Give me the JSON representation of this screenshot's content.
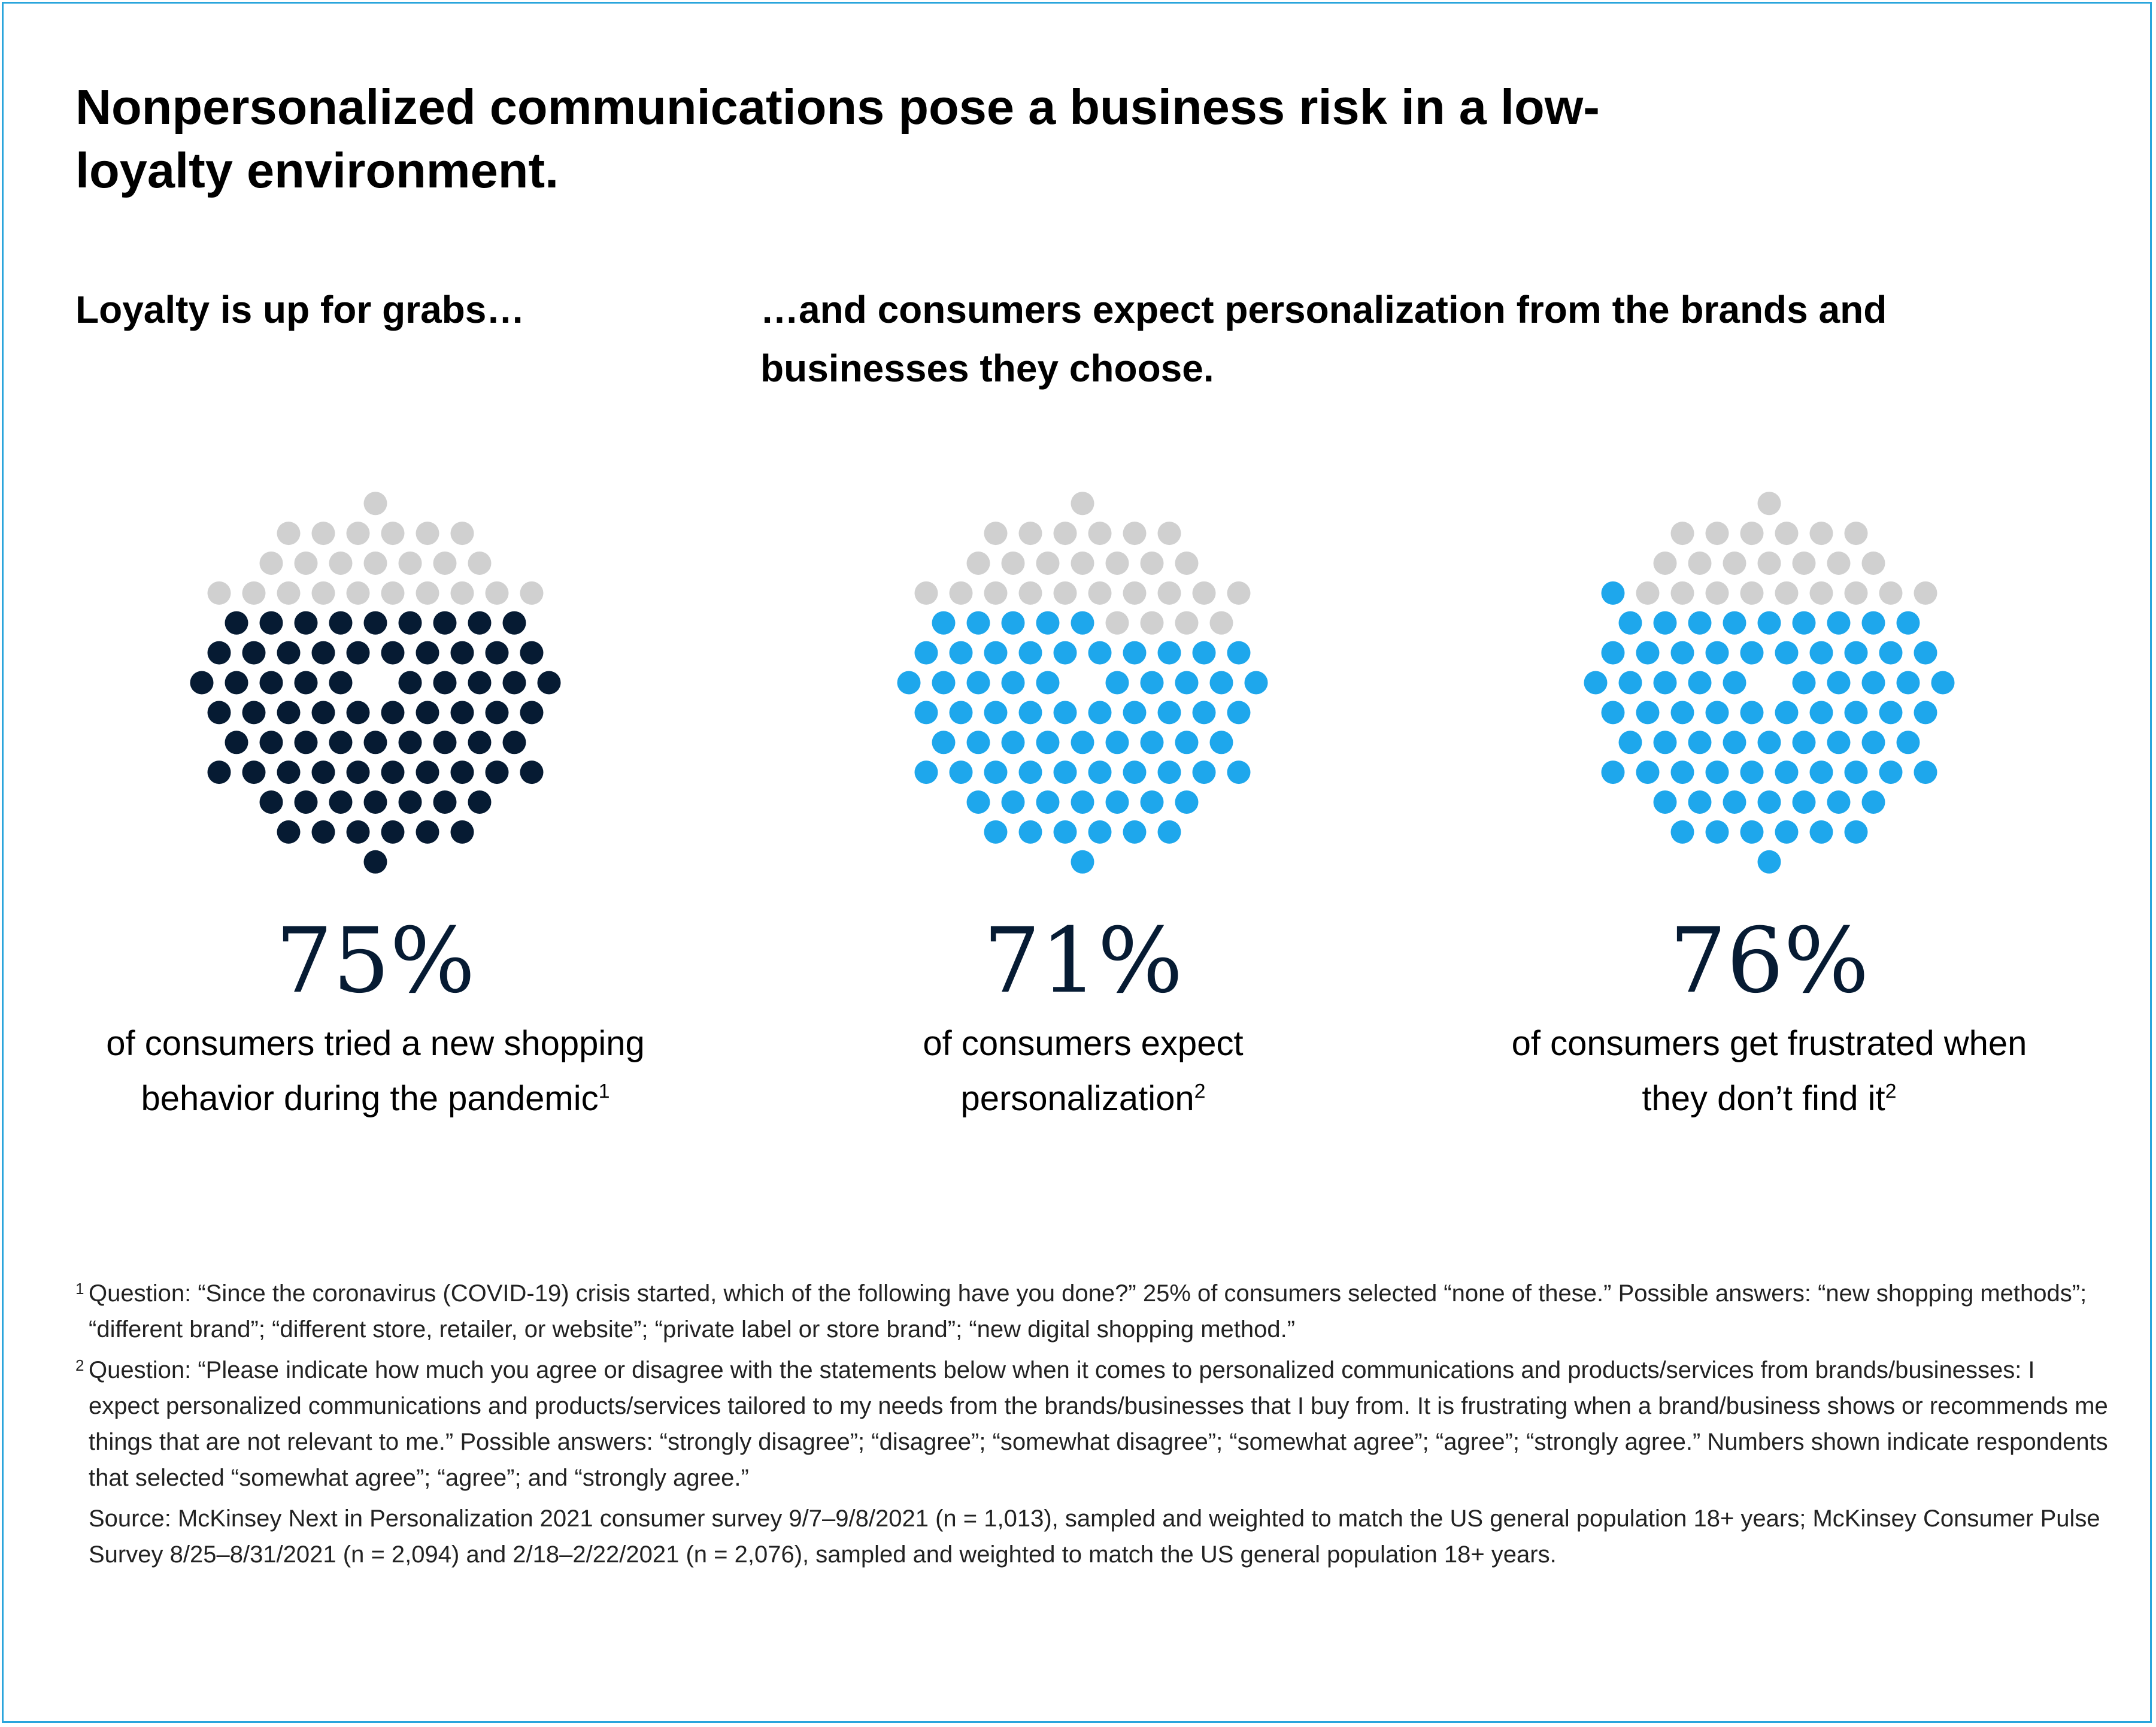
{
  "title": "Nonpersonalized communications pose a business risk in a low-loyalty environment.",
  "subtitle_left": "Loyalty is up for grabs…",
  "subtitle_right": "…and consumers expect personalization from the brands and businesses they choose.",
  "colors": {
    "border": "#2aa5dc",
    "dark": "#061b33",
    "blue": "#1ea7ec",
    "gray": "#d0d0d0"
  },
  "chart_data": [
    {
      "type": "dot-circle",
      "value": 75,
      "value_label": "75%",
      "description": "of consumers tried a new shopping behavior during the pandemic",
      "footnote": "1",
      "highlight_color": "#061b33",
      "rest_color": "#d0d0d0"
    },
    {
      "type": "dot-circle",
      "value": 71,
      "value_label": "71%",
      "description": "of consumers expect personalization",
      "footnote": "2",
      "highlight_color": "#1ea7ec",
      "rest_color": "#d0d0d0"
    },
    {
      "type": "dot-circle",
      "value": 76,
      "value_label": "76%",
      "description": "of consumers get frustrated when they don’t find it",
      "footnote": "2",
      "highlight_color": "#1ea7ec",
      "rest_color": "#d0d0d0"
    }
  ],
  "footnotes": [
    {
      "mark": "1",
      "text": "Question: “Since the coronavirus (COVID-19) crisis started, which of the following have you done?” 25% of consumers selected “none of these.” Possible answers: “new shopping methods”; “different brand”; “different store, retailer, or website”; “private label or store brand”; “new digital shopping method.”"
    },
    {
      "mark": "2",
      "text": "Question: “Please indicate how much you agree or disagree with the statements below when it comes to personalized communications and products/services from brands/businesses: I expect personalized communications and products/services tailored to my needs from the brands/businesses that I buy from. It is frustrating when a brand/business shows or recommends me things that are not relevant to me.” Possible answers: “strongly disagree”; “disagree”; “somewhat disagree”; “somewhat agree”; “agree”; “strongly agree.” Numbers shown indicate respondents that selected “somewhat agree”; “agree”; and “strongly agree.”"
    }
  ],
  "source": "Source: McKinsey Next in Personalization 2021 consumer survey 9/7–9/8/2021 (n = 1,013), sampled and weighted to match the US general population 18+ years; McKinsey Consumer Pulse Survey 8/25–8/31/2021 (n = 2,094) and 2/18–2/22/2021 (n = 2,076), sampled and weighted to match the US general population 18+ years."
}
